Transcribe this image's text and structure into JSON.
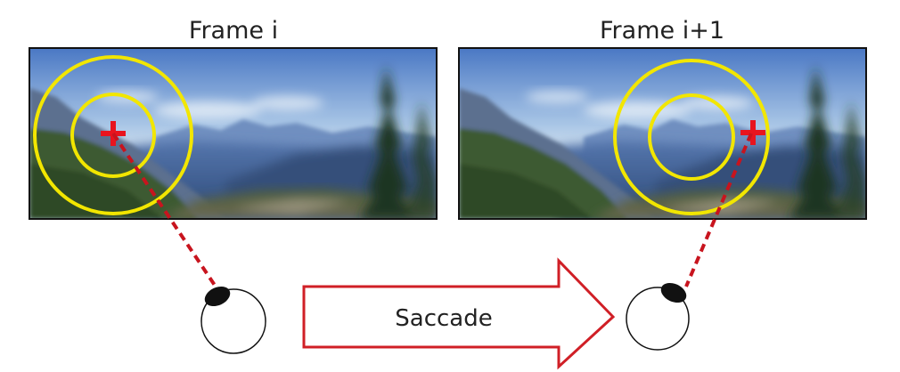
{
  "frames": [
    {
      "title": "Frame i"
    },
    {
      "title": "Frame i+1"
    }
  ],
  "saccade_label": "Saccade",
  "colors": {
    "foveal_ring": "#f2e600",
    "gaze_marker": "#e8141e",
    "gaze_line": "#c8141e",
    "arrow": "#d01f26",
    "eye_pupil": "#111111",
    "sky_top": "#4f7fc9",
    "sky_horizon": "#cfe0ef",
    "mountains": "#3c5f95",
    "forest": "#2f4a2a"
  }
}
